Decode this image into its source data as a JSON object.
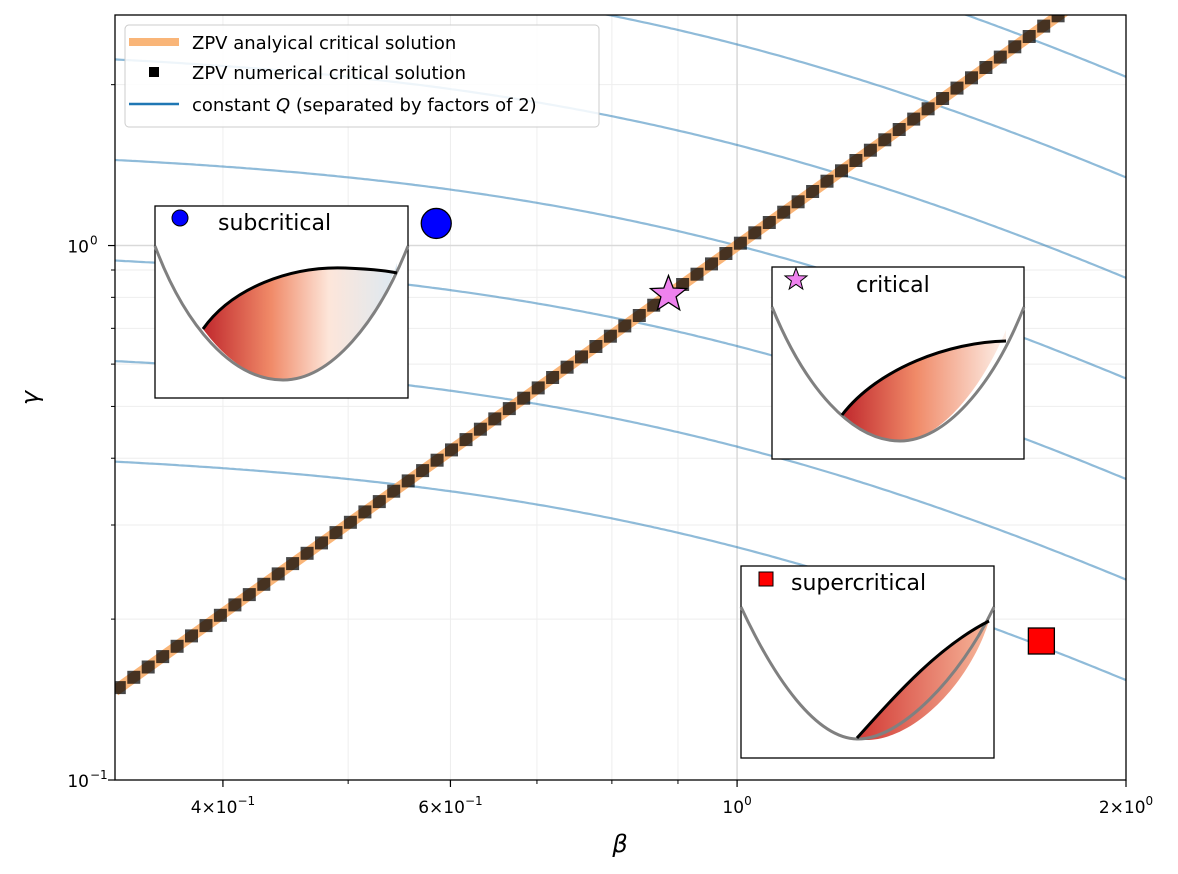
{
  "chart_data": {
    "type": "line",
    "x_scale": "log",
    "y_scale": "log",
    "xlim": [
      0.33,
      2.0
    ],
    "ylim": [
      0.1,
      2.7
    ],
    "xlabel": "β",
    "ylabel": "γ",
    "x_ticks": [
      {
        "value": 0.4,
        "mantissa": "4",
        "exp": "−1"
      },
      {
        "value": 0.6,
        "mantissa": "6",
        "exp": "−1"
      },
      {
        "value": 1.0,
        "mantissa": "",
        "exp": "0"
      },
      {
        "value": 2.0,
        "mantissa": "2",
        "exp": "0"
      }
    ],
    "y_ticks": [
      {
        "value": 0.1,
        "exp": "−1"
      },
      {
        "value": 1.0,
        "exp": "0"
      }
    ],
    "grid": true,
    "legend_position": "top-left",
    "legend": [
      {
        "label": "ZPV analyical critical solution",
        "style": "band",
        "color": "#f9b578"
      },
      {
        "label": "ZPV numerical critical solution",
        "style": "square-marker",
        "color": "#000000"
      },
      {
        "label_prefix": "constant ",
        "label_var": "Q",
        "label_suffix": " (separated by factors of 2)",
        "style": "line",
        "color": "#1f77b4"
      }
    ],
    "critical_line": {
      "slope_loglog": 1.73,
      "point": [
        1.0,
        1.0
      ],
      "numerical_markers": 70
    },
    "contours": {
      "color": "#1f77b4",
      "alpha": 0.5,
      "relative_levels": [
        0.125,
        0.25,
        0.5,
        1,
        2,
        4,
        8,
        16,
        32,
        64,
        128
      ]
    },
    "points": [
      {
        "name": "subcritical",
        "x": 0.585,
        "y": 1.1,
        "marker": "circle",
        "color": "#0000ff"
      },
      {
        "name": "critical",
        "x": 0.885,
        "y": 0.81,
        "marker": "star",
        "color": "#ee82ee"
      },
      {
        "name": "supercritical",
        "x": 1.72,
        "y": 0.182,
        "marker": "square",
        "color": "#ff0000"
      }
    ],
    "insets": [
      {
        "name": "subcritical",
        "label": "subcritical",
        "marker": "circle",
        "color": "#0000ff"
      },
      {
        "name": "critical",
        "label": "critical",
        "marker": "star",
        "color": "#ee82ee"
      },
      {
        "name": "supercritical",
        "label": "supercritical",
        "marker": "square",
        "color": "#ff0000"
      }
    ]
  }
}
